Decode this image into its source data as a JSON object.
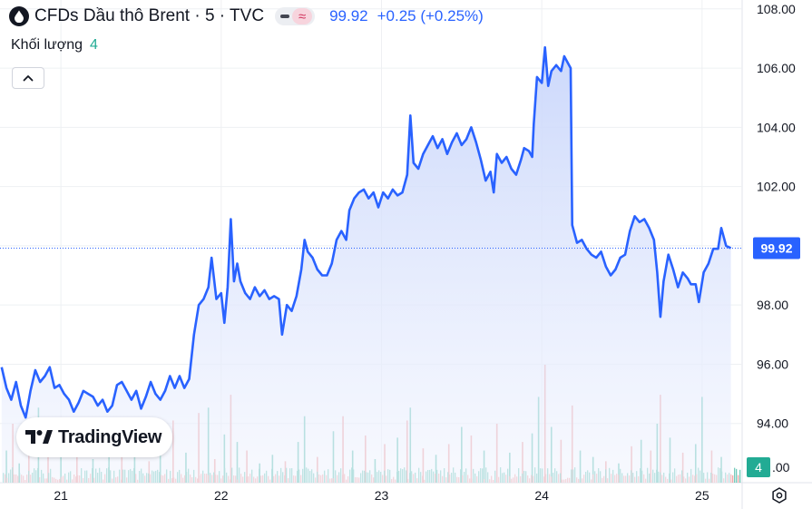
{
  "header": {
    "title": "CFDs Dầu thô Brent · 5 · TVC",
    "price": "99.92",
    "change": "+0.25 (+0.25%)",
    "approx_symbol": "≈"
  },
  "volume_legend": {
    "label": "Khối lượng",
    "value": "4"
  },
  "logo": {
    "text": "TradingView"
  },
  "icons": {
    "symbol": "drop-icon",
    "collapse": "chevron-up-icon",
    "settings": "gear-icon",
    "logo": "tradingview-logo-icon"
  },
  "colors": {
    "line": "#2962ff",
    "area_top": "#c9d6fb",
    "area_bottom": "#f2f5fe",
    "volume_up": "#5cc2b0",
    "volume_down": "#f09b9b",
    "grid": "#eef0f3",
    "price_badge": "#2962ff",
    "volume_badge": "#22ab94"
  },
  "chart_data": {
    "type": "area",
    "title": "CFDs Dầu thô Brent · 5 · TVC",
    "xlabel": "",
    "ylabel": "",
    "x_ticks": [
      "21",
      "22",
      "23",
      "24",
      "25"
    ],
    "y_ticks": [
      "94.00",
      "96.00",
      "98.00",
      "100.00",
      "102.00",
      "104.00",
      "106.00",
      "108.00"
    ],
    "y_tick_values": [
      94,
      96,
      98,
      100,
      102,
      104,
      106,
      108
    ],
    "ylim": [
      92.0,
      108.3
    ],
    "x_range_days": [
      20.62,
      25.25
    ],
    "grid": true,
    "last_price": 99.92,
    "last_price_label": "99.92",
    "volume_last_label": "4",
    "volume_axis_label": ".00",
    "series": [
      {
        "values": [
          [
            20.63,
            95.9
          ],
          [
            20.66,
            95.2
          ],
          [
            20.69,
            94.8
          ],
          [
            20.72,
            95.4
          ],
          [
            20.75,
            94.6
          ],
          [
            20.78,
            94.2
          ],
          [
            20.81,
            95.1
          ],
          [
            20.84,
            95.8
          ],
          [
            20.87,
            95.4
          ],
          [
            20.9,
            95.6
          ],
          [
            20.93,
            95.9
          ],
          [
            20.96,
            95.2
          ],
          [
            20.99,
            95.3
          ],
          [
            21.02,
            95.0
          ],
          [
            21.05,
            94.8
          ],
          [
            21.08,
            94.4
          ],
          [
            21.11,
            94.7
          ],
          [
            21.14,
            95.1
          ],
          [
            21.17,
            95.0
          ],
          [
            21.2,
            94.9
          ],
          [
            21.23,
            94.6
          ],
          [
            21.26,
            94.8
          ],
          [
            21.29,
            94.4
          ],
          [
            21.32,
            94.6
          ],
          [
            21.35,
            95.3
          ],
          [
            21.38,
            95.4
          ],
          [
            21.41,
            95.1
          ],
          [
            21.44,
            94.8
          ],
          [
            21.47,
            95.1
          ],
          [
            21.5,
            94.5
          ],
          [
            21.53,
            94.9
          ],
          [
            21.56,
            95.4
          ],
          [
            21.59,
            95.0
          ],
          [
            21.62,
            94.8
          ],
          [
            21.65,
            95.1
          ],
          [
            21.68,
            95.6
          ],
          [
            21.71,
            95.2
          ],
          [
            21.74,
            95.6
          ],
          [
            21.77,
            95.2
          ],
          [
            21.8,
            95.5
          ],
          [
            21.83,
            97.0
          ],
          [
            21.86,
            98.0
          ],
          [
            21.89,
            98.2
          ],
          [
            21.92,
            98.6
          ],
          [
            21.94,
            99.6
          ],
          [
            21.97,
            98.2
          ],
          [
            22.0,
            98.4
          ],
          [
            22.02,
            97.4
          ],
          [
            22.04,
            98.6
          ],
          [
            22.06,
            100.9
          ],
          [
            22.08,
            98.8
          ],
          [
            22.1,
            99.4
          ],
          [
            22.12,
            98.8
          ],
          [
            22.15,
            98.4
          ],
          [
            22.18,
            98.2
          ],
          [
            22.21,
            98.6
          ],
          [
            22.24,
            98.3
          ],
          [
            22.27,
            98.5
          ],
          [
            22.3,
            98.2
          ],
          [
            22.33,
            98.3
          ],
          [
            22.36,
            98.2
          ],
          [
            22.38,
            97.0
          ],
          [
            22.41,
            98.0
          ],
          [
            22.44,
            97.8
          ],
          [
            22.47,
            98.3
          ],
          [
            22.5,
            99.2
          ],
          [
            22.52,
            100.2
          ],
          [
            22.54,
            99.8
          ],
          [
            22.57,
            99.6
          ],
          [
            22.6,
            99.2
          ],
          [
            22.63,
            99.0
          ],
          [
            22.66,
            99.0
          ],
          [
            22.69,
            99.4
          ],
          [
            22.72,
            100.2
          ],
          [
            22.75,
            100.5
          ],
          [
            22.78,
            100.2
          ],
          [
            22.8,
            101.2
          ],
          [
            22.83,
            101.6
          ],
          [
            22.86,
            101.8
          ],
          [
            22.89,
            101.9
          ],
          [
            22.92,
            101.6
          ],
          [
            22.95,
            101.8
          ],
          [
            22.98,
            101.3
          ],
          [
            23.01,
            101.8
          ],
          [
            23.04,
            101.6
          ],
          [
            23.07,
            101.9
          ],
          [
            23.1,
            101.7
          ],
          [
            23.13,
            101.8
          ],
          [
            23.16,
            102.4
          ],
          [
            23.18,
            104.4
          ],
          [
            23.2,
            102.8
          ],
          [
            23.23,
            102.6
          ],
          [
            23.26,
            103.1
          ],
          [
            23.29,
            103.4
          ],
          [
            23.32,
            103.7
          ],
          [
            23.35,
            103.3
          ],
          [
            23.38,
            103.6
          ],
          [
            23.41,
            103.1
          ],
          [
            23.44,
            103.5
          ],
          [
            23.47,
            103.8
          ],
          [
            23.5,
            103.4
          ],
          [
            23.53,
            103.6
          ],
          [
            23.56,
            104.0
          ],
          [
            23.59,
            103.5
          ],
          [
            23.62,
            102.9
          ],
          [
            23.65,
            102.2
          ],
          [
            23.68,
            102.5
          ],
          [
            23.7,
            101.8
          ],
          [
            23.72,
            103.1
          ],
          [
            23.75,
            102.8
          ],
          [
            23.78,
            103.0
          ],
          [
            23.81,
            102.6
          ],
          [
            23.84,
            102.4
          ],
          [
            23.87,
            102.9
          ],
          [
            23.89,
            103.3
          ],
          [
            23.92,
            103.2
          ],
          [
            23.94,
            103.0
          ],
          [
            23.95,
            104.1
          ],
          [
            23.97,
            105.7
          ],
          [
            24.0,
            105.5
          ],
          [
            24.02,
            106.7
          ],
          [
            24.04,
            105.4
          ],
          [
            24.06,
            105.9
          ],
          [
            24.09,
            106.1
          ],
          [
            24.12,
            105.9
          ],
          [
            24.14,
            106.4
          ],
          [
            24.16,
            106.2
          ],
          [
            24.18,
            106.0
          ],
          [
            24.19,
            100.7
          ],
          [
            24.22,
            100.1
          ],
          [
            24.25,
            100.2
          ],
          [
            24.28,
            99.9
          ],
          [
            24.31,
            99.7
          ],
          [
            24.34,
            99.6
          ],
          [
            24.37,
            99.8
          ],
          [
            24.4,
            99.3
          ],
          [
            24.43,
            99.0
          ],
          [
            24.46,
            99.2
          ],
          [
            24.49,
            99.6
          ],
          [
            24.52,
            99.7
          ],
          [
            24.55,
            100.5
          ],
          [
            24.58,
            101.0
          ],
          [
            24.61,
            100.8
          ],
          [
            24.64,
            100.9
          ],
          [
            24.67,
            100.6
          ],
          [
            24.7,
            100.2
          ],
          [
            24.72,
            99.1
          ],
          [
            24.74,
            97.6
          ],
          [
            24.76,
            98.8
          ],
          [
            24.79,
            99.7
          ],
          [
            24.82,
            99.2
          ],
          [
            24.85,
            98.6
          ],
          [
            24.88,
            99.1
          ],
          [
            24.91,
            98.9
          ],
          [
            24.93,
            98.7
          ],
          [
            24.96,
            98.7
          ],
          [
            24.98,
            98.1
          ],
          [
            25.01,
            99.1
          ],
          [
            25.04,
            99.4
          ],
          [
            25.07,
            99.9
          ],
          [
            25.1,
            99.9
          ],
          [
            25.12,
            100.6
          ],
          [
            25.15,
            100.0
          ],
          [
            25.18,
            99.92
          ]
        ]
      }
    ],
    "volume_series": {
      "name": "Khối lượng",
      "values": [
        [
          20.66,
          30,
          "up"
        ],
        [
          20.7,
          55,
          "down"
        ],
        [
          20.74,
          18,
          "up"
        ],
        [
          20.8,
          44,
          "down"
        ],
        [
          20.86,
          70,
          "up"
        ],
        [
          20.92,
          36,
          "down"
        ],
        [
          21.0,
          28,
          "up"
        ],
        [
          21.1,
          48,
          "down"
        ],
        [
          21.2,
          22,
          "up"
        ],
        [
          21.3,
          40,
          "up"
        ],
        [
          21.38,
          26,
          "down"
        ],
        [
          21.46,
          34,
          "up"
        ],
        [
          21.55,
          20,
          "down"
        ],
        [
          21.62,
          42,
          "up"
        ],
        [
          21.7,
          58,
          "down"
        ],
        [
          21.78,
          28,
          "up"
        ],
        [
          21.86,
          65,
          "down"
        ],
        [
          21.92,
          70,
          "up"
        ],
        [
          21.96,
          22,
          "down"
        ],
        [
          22.02,
          45,
          "up"
        ],
        [
          22.06,
          82,
          "down"
        ],
        [
          22.1,
          38,
          "up"
        ],
        [
          22.16,
          30,
          "down"
        ],
        [
          22.24,
          18,
          "up"
        ],
        [
          22.32,
          26,
          "up"
        ],
        [
          22.4,
          20,
          "down"
        ],
        [
          22.48,
          38,
          "up"
        ],
        [
          22.52,
          62,
          "up"
        ],
        [
          22.6,
          24,
          "down"
        ],
        [
          22.7,
          48,
          "up"
        ],
        [
          22.76,
          62,
          "down"
        ],
        [
          22.82,
          30,
          "up"
        ],
        [
          22.9,
          44,
          "down"
        ],
        [
          22.96,
          22,
          "up"
        ],
        [
          23.02,
          36,
          "down"
        ],
        [
          23.1,
          42,
          "up"
        ],
        [
          23.16,
          58,
          "down"
        ],
        [
          23.18,
          70,
          "up"
        ],
        [
          23.26,
          32,
          "down"
        ],
        [
          23.34,
          26,
          "up"
        ],
        [
          23.42,
          36,
          "down"
        ],
        [
          23.5,
          52,
          "up"
        ],
        [
          23.56,
          44,
          "down"
        ],
        [
          23.64,
          30,
          "up"
        ],
        [
          23.72,
          55,
          "down"
        ],
        [
          23.8,
          28,
          "up"
        ],
        [
          23.88,
          38,
          "down"
        ],
        [
          23.94,
          46,
          "up"
        ],
        [
          23.98,
          80,
          "up"
        ],
        [
          24.02,
          110,
          "down"
        ],
        [
          24.06,
          52,
          "up"
        ],
        [
          24.12,
          40,
          "down"
        ],
        [
          24.19,
          72,
          "down"
        ],
        [
          24.24,
          30,
          "up"
        ],
        [
          24.32,
          24,
          "up"
        ],
        [
          24.4,
          20,
          "down"
        ],
        [
          24.48,
          18,
          "up"
        ],
        [
          24.56,
          34,
          "down"
        ],
        [
          24.62,
          40,
          "up"
        ],
        [
          24.68,
          30,
          "down"
        ],
        [
          24.72,
          55,
          "up"
        ],
        [
          24.74,
          82,
          "down"
        ],
        [
          24.8,
          42,
          "up"
        ],
        [
          24.88,
          28,
          "down"
        ],
        [
          24.96,
          36,
          "up"
        ],
        [
          25.0,
          80,
          "up"
        ],
        [
          25.06,
          30,
          "down"
        ],
        [
          25.12,
          24,
          "up"
        ]
      ]
    }
  }
}
